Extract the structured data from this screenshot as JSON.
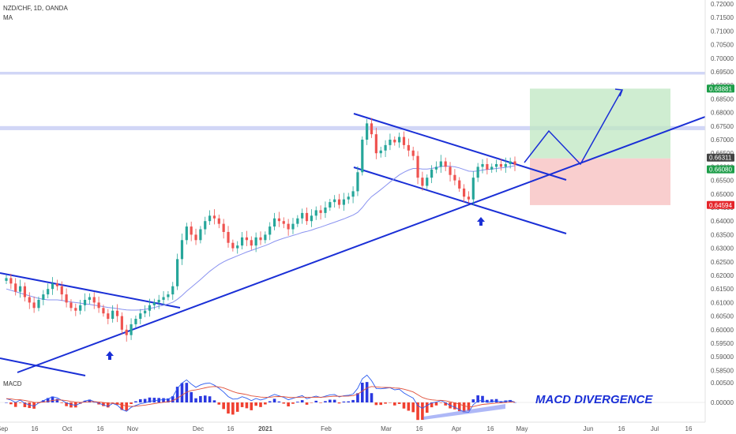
{
  "chart_data": {
    "type": "candlestick",
    "symbol_label": "NZD/CHF, 1D, OANDA",
    "indicator_label": "MA",
    "macd_label": "MACD",
    "annotation": "MACD DIVERGENCE",
    "ylim": [
      0.5825,
      0.7205
    ],
    "y_ticks": [
      "0.72000",
      "0.71500",
      "0.71000",
      "0.70500",
      "0.70000",
      "0.69500",
      "0.69000",
      "0.68500",
      "0.68000",
      "0.67500",
      "0.67000",
      "0.66500",
      "0.66000",
      "0.65500",
      "0.65000",
      "0.64500",
      "0.64000",
      "0.63500",
      "0.63000",
      "0.62500",
      "0.62000",
      "0.61500",
      "0.61000",
      "0.60500",
      "0.60000",
      "0.59500",
      "0.59000",
      "0.58500"
    ],
    "macd_ticks": [
      "0.00500",
      "0.00000"
    ],
    "x_ticks": [
      "Sep",
      "16",
      "Oct",
      "16",
      "Nov",
      "Dec",
      "16",
      "2021",
      "Feb",
      "Mar",
      "16",
      "Apr",
      "16",
      "May",
      "Jun",
      "16",
      "Jul",
      "16"
    ],
    "price_badges": [
      {
        "label": "0.68881",
        "value": 0.68881,
        "color": "#1e9e4a"
      },
      {
        "label": "0.66311",
        "value": 0.66311,
        "color": "#444444"
      },
      {
        "label": "0.66080",
        "value": 0.6608,
        "color": "#1e9e4a"
      },
      {
        "label": "0.64594",
        "value": 0.64594,
        "color": "#e5252a"
      }
    ],
    "resistance_zones": [
      [
        0.694,
        0.695
      ],
      [
        0.6735,
        0.675
      ]
    ],
    "target_zone": [
      0.6888,
      0.6631
    ],
    "stop_zone": [
      0.6631,
      0.6459
    ],
    "closes": [
      0.619,
      0.617,
      0.614,
      0.616,
      0.612,
      0.61,
      0.608,
      0.611,
      0.613,
      0.615,
      0.617,
      0.616,
      0.613,
      0.61,
      0.608,
      0.607,
      0.609,
      0.611,
      0.612,
      0.61,
      0.608,
      0.606,
      0.604,
      0.607,
      0.605,
      0.6,
      0.598,
      0.602,
      0.604,
      0.606,
      0.607,
      0.609,
      0.61,
      0.611,
      0.612,
      0.613,
      0.616,
      0.626,
      0.633,
      0.638,
      0.635,
      0.633,
      0.637,
      0.64,
      0.642,
      0.641,
      0.639,
      0.636,
      0.632,
      0.63,
      0.631,
      0.634,
      0.633,
      0.631,
      0.634,
      0.633,
      0.635,
      0.638,
      0.641,
      0.64,
      0.639,
      0.637,
      0.639,
      0.641,
      0.643,
      0.64,
      0.642,
      0.644,
      0.643,
      0.645,
      0.647,
      0.648,
      0.646,
      0.648,
      0.649,
      0.651,
      0.658,
      0.67,
      0.676,
      0.672,
      0.665,
      0.666,
      0.668,
      0.67,
      0.669,
      0.671,
      0.668,
      0.666,
      0.664,
      0.656,
      0.653,
      0.656,
      0.659,
      0.66,
      0.662,
      0.66,
      0.657,
      0.655,
      0.652,
      0.649,
      0.648,
      0.656,
      0.66,
      0.661,
      0.659,
      0.66,
      0.661,
      0.66,
      0.661,
      0.662,
      0.6608
    ],
    "ma": [
      0.615,
      0.6145,
      0.614,
      0.6135,
      0.613,
      0.6125,
      0.612,
      0.6115,
      0.6112,
      0.611,
      0.611,
      0.611,
      0.6108,
      0.6105,
      0.6102,
      0.61,
      0.6098,
      0.6095,
      0.6093,
      0.609,
      0.6088,
      0.6085,
      0.6082,
      0.608,
      0.6078,
      0.6075,
      0.6073,
      0.6072,
      0.6072,
      0.6073,
      0.6075,
      0.6078,
      0.6082,
      0.6086,
      0.609,
      0.6095,
      0.6101,
      0.6112,
      0.6126,
      0.6142,
      0.6156,
      0.617,
      0.6185,
      0.62,
      0.6215,
      0.6228,
      0.624,
      0.625,
      0.6258,
      0.6265,
      0.6272,
      0.6279,
      0.6286,
      0.6292,
      0.6298,
      0.6304,
      0.631,
      0.6317,
      0.6325,
      0.6331,
      0.6337,
      0.6342,
      0.6347,
      0.6352,
      0.6358,
      0.6362,
      0.6367,
      0.6373,
      0.6378,
      0.6384,
      0.639,
      0.6396,
      0.6402,
      0.6408,
      0.6415,
      0.6422,
      0.6432,
      0.645,
      0.6472,
      0.649,
      0.6503,
      0.6516,
      0.653,
      0.6544,
      0.6557,
      0.657,
      0.658,
      0.6588,
      0.6594,
      0.6594,
      0.6592,
      0.6592,
      0.6594,
      0.6597,
      0.6601,
      0.6603,
      0.6602,
      0.66,
      0.6596,
      0.659,
      0.6584,
      0.6583,
      0.6585,
      0.6588,
      0.659,
      0.6592,
      0.6594,
      0.6596,
      0.6598,
      0.6601,
      0.6604
    ]
  }
}
